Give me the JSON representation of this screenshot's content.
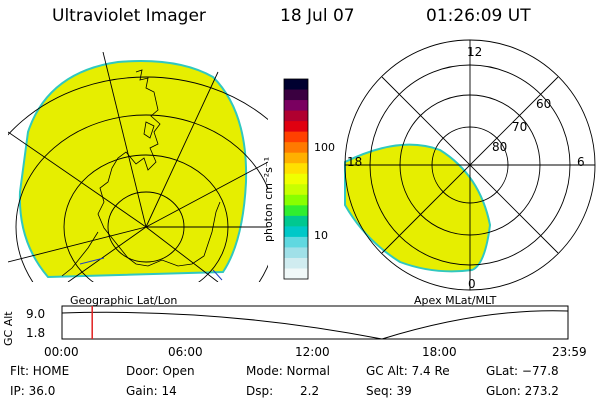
{
  "header": {
    "instrument": "Ultraviolet Imager",
    "date": "18 Jul 07",
    "time": "01:26:09 UT"
  },
  "colorbar": {
    "unit_label": "photon cm⁻²s⁻¹",
    "ticks": [
      "100",
      "10"
    ],
    "colors": [
      "#000030",
      "#3a0040",
      "#7a0060",
      "#b00030",
      "#e00010",
      "#ff4000",
      "#ff7a00",
      "#ffb000",
      "#ffe000",
      "#f0ff00",
      "#c8ff00",
      "#88ff00",
      "#30ee30",
      "#00c890",
      "#00c8c8",
      "#60d8e0",
      "#a0e0e8",
      "#d0ecf0",
      "#f0f8f8"
    ]
  },
  "geo_map": {
    "label": "Geographic Lat/Lon",
    "fill_color": "#e6ee00",
    "edge_color": "#30c8c0"
  },
  "apex_map": {
    "label": "Apex MLat/MLT",
    "mlt_labels": {
      "top": "12",
      "left": "18",
      "right": "6",
      "bottom": "0"
    },
    "lat_labels": [
      "60",
      "70",
      "80"
    ]
  },
  "altitude_plot": {
    "ylabel": "GC Alt",
    "yticks": [
      "9.0",
      "1.8"
    ],
    "xticks": [
      "00:00",
      "06:00",
      "12:00",
      "18:00",
      "23:59"
    ],
    "marker_time": "01:26"
  },
  "status": {
    "flt": "Flt: HOME",
    "door": "Door: Open",
    "mode": "Mode: Normal",
    "gc_alt": "GC Alt: 7.4 Re",
    "glat": "GLat: −77.8",
    "ip": "IP: 36.0",
    "gain": "Gain: 14",
    "dsp_label": "Dsp:",
    "dsp_value": "2.2",
    "seq": "Seq: 39",
    "glon": "GLon: 273.2"
  }
}
